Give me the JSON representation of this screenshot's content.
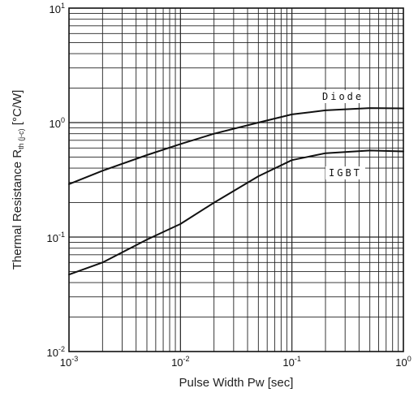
{
  "chart_data": {
    "type": "line",
    "xscale": "log",
    "yscale": "log",
    "xlim": [
      0.001,
      1
    ],
    "ylim": [
      0.01,
      10
    ],
    "grid": true,
    "xlabel": "Pulse Width Pw [sec]",
    "ylabel": {
      "main": "Thermal Resistance R",
      "sub": "th (j-c)",
      "unit": " [°C/W]"
    },
    "xticks": [
      {
        "base": "10",
        "exp": "-3"
      },
      {
        "base": "10",
        "exp": "-2"
      },
      {
        "base": "10",
        "exp": "-1"
      },
      {
        "base": "10",
        "exp": "0"
      }
    ],
    "yticks": [
      {
        "base": "10",
        "exp": "-2"
      },
      {
        "base": "10",
        "exp": "-1"
      },
      {
        "base": "10",
        "exp": "0"
      },
      {
        "base": "10",
        "exp": "1"
      }
    ],
    "series": [
      {
        "name": "Diode",
        "points": [
          [
            0.001,
            0.29
          ],
          [
            0.002,
            0.38
          ],
          [
            0.005,
            0.52
          ],
          [
            0.01,
            0.65
          ],
          [
            0.02,
            0.8
          ],
          [
            0.05,
            1.0
          ],
          [
            0.1,
            1.18
          ],
          [
            0.2,
            1.28
          ],
          [
            0.5,
            1.34
          ],
          [
            1.0,
            1.33
          ]
        ]
      },
      {
        "name": "IGBT",
        "points": [
          [
            0.001,
            0.047
          ],
          [
            0.002,
            0.06
          ],
          [
            0.005,
            0.095
          ],
          [
            0.01,
            0.13
          ],
          [
            0.02,
            0.2
          ],
          [
            0.05,
            0.34
          ],
          [
            0.1,
            0.47
          ],
          [
            0.2,
            0.54
          ],
          [
            0.5,
            0.57
          ],
          [
            1.0,
            0.56
          ]
        ]
      }
    ]
  }
}
